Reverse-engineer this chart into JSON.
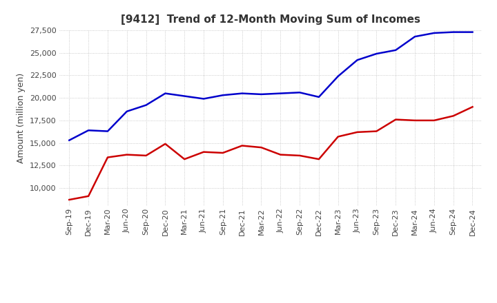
{
  "title": "[9412]  Trend of 12-Month Moving Sum of Incomes",
  "ylabel": "Amount (million yen)",
  "background_color": "#ffffff",
  "grid_color": "#bbbbbb",
  "ordinary_income_color": "#0000cc",
  "net_income_color": "#cc0000",
  "ylim": [
    8000,
    27500
  ],
  "yticks": [
    10000,
    12500,
    15000,
    17500,
    20000,
    22500,
    25000,
    27500
  ],
  "labels": [
    "Sep-19",
    "Dec-19",
    "Mar-20",
    "Jun-20",
    "Sep-20",
    "Dec-20",
    "Mar-21",
    "Jun-21",
    "Sep-21",
    "Dec-21",
    "Mar-22",
    "Jun-22",
    "Sep-22",
    "Dec-22",
    "Mar-23",
    "Jun-23",
    "Sep-23",
    "Dec-23",
    "Mar-24",
    "Jun-24",
    "Sep-24",
    "Dec-24"
  ],
  "ordinary_income": [
    15300,
    16400,
    16300,
    18500,
    19200,
    20500,
    20200,
    19900,
    20300,
    20500,
    20400,
    20500,
    20600,
    20100,
    22400,
    24200,
    24900,
    25300,
    26800,
    27200,
    27300,
    27300
  ],
  "net_income": [
    8700,
    9100,
    13400,
    13700,
    13600,
    14900,
    13200,
    14000,
    13900,
    14700,
    14500,
    13700,
    13600,
    13200,
    15700,
    16200,
    16300,
    17600,
    17500,
    17500,
    18000,
    19000
  ],
  "title_fontsize": 11,
  "axis_label_fontsize": 9,
  "tick_fontsize": 8,
  "legend_fontsize": 9,
  "line_width": 1.8
}
